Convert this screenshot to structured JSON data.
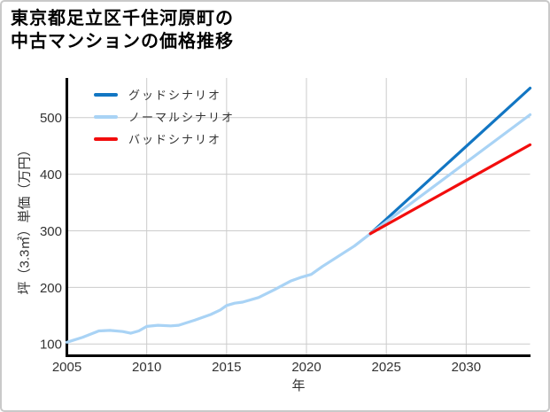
{
  "title_lines": [
    "東京都足立区千住河原町の",
    "中古マンションの価格推移"
  ],
  "legend": [
    {
      "id": "good",
      "label": "グッドシナリオ"
    },
    {
      "id": "normal",
      "label": "ノーマルシナリオ"
    },
    {
      "id": "bad",
      "label": "バッドシナリオ"
    }
  ],
  "colors": {
    "good": "#1276c3",
    "normal": "#a9d3f5",
    "bad": "#f20d0d",
    "grid": "#cccccc",
    "spine": "#000000",
    "tick_text": "#333333"
  },
  "chart_data": {
    "type": "line",
    "title": "東京都足立区千住河原町の中古マンションの価格推移",
    "xlabel": "年",
    "ylabel": "坪（3.3㎡）単価（万円）",
    "xlim": [
      2005,
      2034
    ],
    "ylim": [
      80,
      570
    ],
    "xticks": [
      2005,
      2010,
      2015,
      2020,
      2025,
      2030
    ],
    "yticks": [
      100,
      200,
      300,
      400,
      500
    ],
    "grid": true,
    "legend_position": "upper-left",
    "series": [
      {
        "id": "history",
        "name": "ノーマルシナリオ",
        "segment": "history",
        "color_key": "normal",
        "points": [
          [
            2005,
            103
          ],
          [
            2006,
            112
          ],
          [
            2007,
            123
          ],
          [
            2007.7,
            124
          ],
          [
            2008.5,
            122
          ],
          [
            2009,
            119
          ],
          [
            2009.5,
            123
          ],
          [
            2010,
            131
          ],
          [
            2010.7,
            133
          ],
          [
            2011.5,
            132
          ],
          [
            2012,
            133
          ],
          [
            2013,
            142
          ],
          [
            2014,
            152
          ],
          [
            2014.6,
            160
          ],
          [
            2015,
            168
          ],
          [
            2015.5,
            172
          ],
          [
            2016,
            174
          ],
          [
            2017,
            182
          ],
          [
            2018,
            196
          ],
          [
            2019,
            211
          ],
          [
            2019.7,
            218
          ],
          [
            2020.3,
            223
          ],
          [
            2021,
            237
          ],
          [
            2022,
            255
          ],
          [
            2023,
            273
          ],
          [
            2024,
            295
          ]
        ]
      },
      {
        "id": "good",
        "name": "グッドシナリオ",
        "segment": "forecast",
        "color_key": "good",
        "points": [
          [
            2024,
            295
          ],
          [
            2034,
            552
          ]
        ]
      },
      {
        "id": "normal",
        "name": "ノーマルシナリオ",
        "segment": "forecast",
        "color_key": "normal",
        "points": [
          [
            2024,
            295
          ],
          [
            2034,
            505
          ]
        ]
      },
      {
        "id": "bad",
        "name": "バッドシナリオ",
        "segment": "forecast",
        "color_key": "bad",
        "points": [
          [
            2024,
            295
          ],
          [
            2034,
            452
          ]
        ]
      }
    ]
  }
}
